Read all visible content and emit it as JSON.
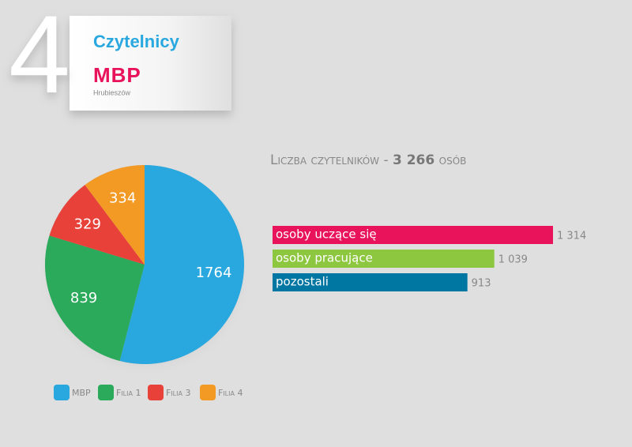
{
  "header": {
    "number": "4",
    "title": "Czytelnicy",
    "logo": "MBP",
    "logo_caption": "Hrubieszów"
  },
  "summary": {
    "label": "Liczba czytelników",
    "dash": "-",
    "total": "3 266",
    "unit": "osób"
  },
  "chart_data": [
    {
      "type": "pie",
      "categories": [
        "MBP",
        "Filia 1",
        "Filia 3",
        "Filia 4"
      ],
      "values": [
        1764,
        839,
        329,
        334
      ],
      "colors": [
        "#29a8df",
        "#2aaa5a",
        "#e8413a",
        "#f39a25"
      ],
      "legend": "bottom"
    },
    {
      "type": "hbar",
      "categories": [
        "osoby uczące się",
        "osoby pracujące",
        "pozostali"
      ],
      "values": [
        1314,
        1039,
        913
      ],
      "value_labels": [
        "1 314",
        "1 039",
        "913"
      ],
      "colors": [
        "#e8135a",
        "#8dc63f",
        "#0077a3"
      ]
    }
  ]
}
